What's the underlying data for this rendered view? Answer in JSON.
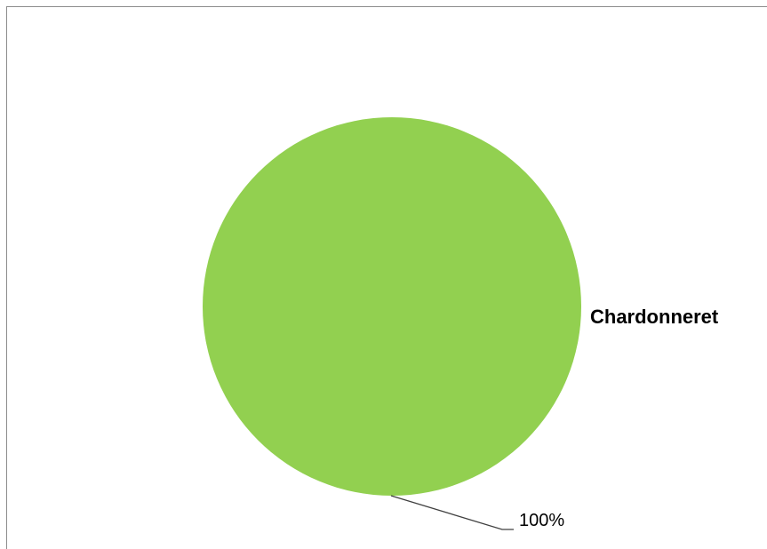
{
  "chart_data": {
    "type": "pie",
    "categories": [
      "Chardonneret"
    ],
    "values": [
      100
    ],
    "data_labels": [
      "100%"
    ],
    "colors": [
      "#92d050"
    ],
    "title": "",
    "legend": "none"
  }
}
